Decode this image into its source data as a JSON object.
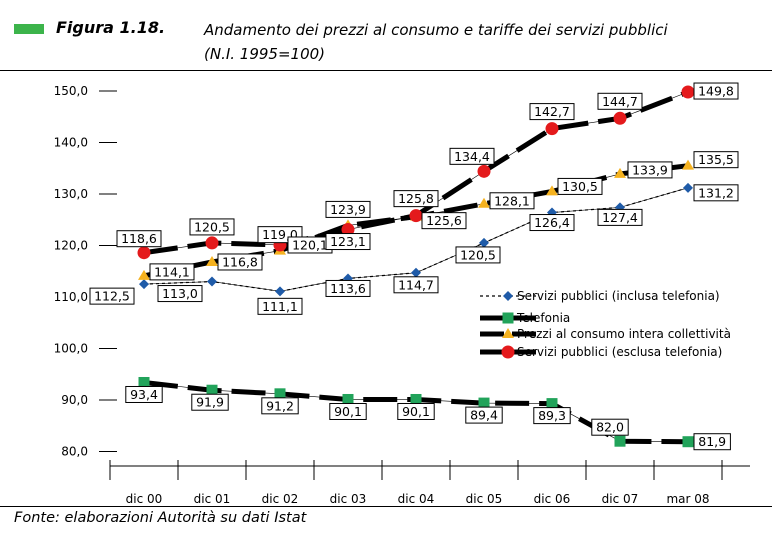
{
  "header": {
    "figure_number": "Figura 1.18.",
    "title_line1": "Andamento dei prezzi al consumo e tariffe dei servizi pubblici",
    "title_line2": "(N.I. 1995=100)",
    "marker_color": "#3cb44b"
  },
  "source": "Fonte: elaborazioni Autorità su dati Istat",
  "chart_data": {
    "type": "line",
    "categories": [
      "dic 00",
      "dic 01",
      "dic 02",
      "dic 03",
      "dic 04",
      "dic 05",
      "dic 06",
      "dic 07",
      "mar 08"
    ],
    "ylim": [
      75,
      150
    ],
    "yticks": [
      80,
      90,
      100,
      110,
      120,
      130,
      140,
      150
    ],
    "ytick_labels": [
      "80,0",
      "90,0",
      "100,0",
      "110,0",
      "120,0",
      "130,0",
      "140,0",
      "150,0"
    ],
    "grid": false,
    "legend_position": "right",
    "series": [
      {
        "name": "Servizi pubblici (inclusa telefonia)",
        "values": [
          112.5,
          113.0,
          111.1,
          113.6,
          114.7,
          120.5,
          126.4,
          127.4,
          131.2
        ],
        "labels": [
          "112,5",
          "113,0",
          "111,1",
          "113,6",
          "114,7",
          "120,5",
          "126,4",
          "127,4",
          "131,2"
        ],
        "color": "#1f5ba8",
        "line": "dotted",
        "marker": "diamond"
      },
      {
        "name": "Telefonia",
        "values": [
          93.4,
          91.9,
          91.2,
          90.1,
          90.1,
          89.4,
          89.3,
          82.0,
          81.9
        ],
        "labels": [
          "93,4",
          "91,9",
          "91,2",
          "90,1",
          "90,1",
          "89,4",
          "89,3",
          "82,0",
          "81,9"
        ],
        "color": "#21a35a",
        "line": "dashed",
        "marker": "square"
      },
      {
        "name": "Prezzi al consumo intera collettività",
        "values": [
          114.1,
          116.8,
          119.0,
          123.9,
          125.6,
          128.1,
          130.5,
          133.9,
          135.5
        ],
        "labels": [
          "114,1",
          "116,8",
          "119,0",
          "123,9",
          "125,6",
          "128,1",
          "130,5",
          "133,9",
          "135,5"
        ],
        "color": "#f5b21f",
        "line": "dashed",
        "marker": "triangle"
      },
      {
        "name": "Servizi pubblici (esclusa telefonia)",
        "values": [
          118.6,
          120.5,
          120.1,
          123.1,
          125.8,
          134.4,
          142.7,
          144.7,
          149.8
        ],
        "labels": [
          "118,6",
          "120,5",
          "120,1",
          "123,1",
          "125,8",
          "134,4",
          "142,7",
          "144,7",
          "149,8"
        ],
        "color": "#e41a1c",
        "line": "dashed",
        "marker": "circle"
      }
    ]
  }
}
